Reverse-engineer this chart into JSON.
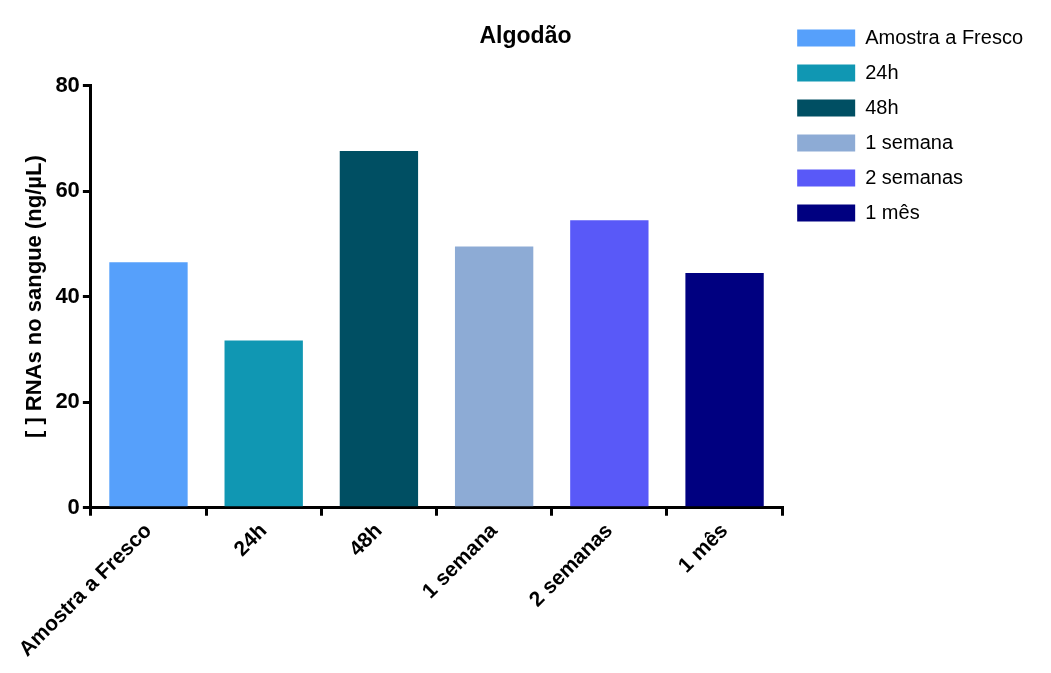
{
  "chart_data": {
    "type": "bar",
    "title": "Algodão",
    "ylabel": "[ ] RNAs no sangue (ng/µL)",
    "categories": [
      "Amostra a Fresco",
      "24h",
      "48h",
      "1 semana",
      "2 semanas",
      "1 mês"
    ],
    "series": [
      {
        "name": "Amostra a Fresco",
        "color": "#56a0fb",
        "values": [
          46.5,
          null,
          null,
          null,
          null,
          null
        ]
      },
      {
        "name": "24h",
        "color": "#1097b3",
        "values": [
          null,
          31.7,
          null,
          null,
          null,
          null
        ]
      },
      {
        "name": "48h",
        "color": "#004f63",
        "values": [
          null,
          null,
          67.6,
          null,
          null,
          null
        ]
      },
      {
        "name": "1 semana",
        "color": "#8dabd5",
        "values": [
          null,
          null,
          null,
          49.5,
          null,
          null
        ]
      },
      {
        "name": "2 semanas",
        "color": "#5959f8",
        "values": [
          null,
          null,
          null,
          null,
          54.5,
          null
        ]
      },
      {
        "name": "1 mês",
        "color": "#000080",
        "values": [
          null,
          null,
          null,
          null,
          null,
          44.5
        ]
      }
    ],
    "ylim": [
      0,
      80
    ],
    "yticks": [
      0,
      20,
      40,
      60,
      80
    ],
    "grid": false,
    "legend": "top right"
  }
}
